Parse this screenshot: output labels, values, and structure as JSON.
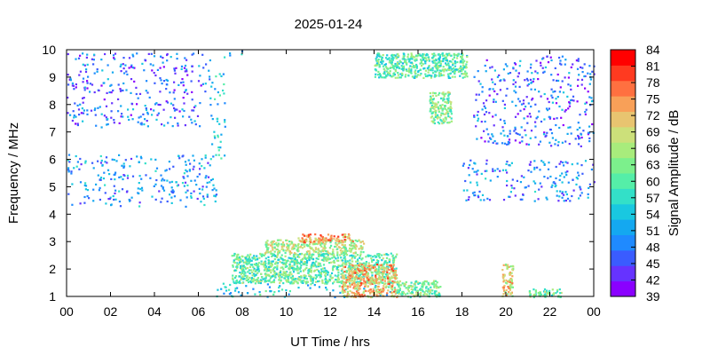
{
  "chart_data": {
    "type": "heatmap",
    "title": "2025-01-24",
    "xlabel": "UT Time / hrs",
    "ylabel": "Frequency / MHz",
    "colorbar_label": "Signal Amplitude / dB",
    "xlim": [
      0,
      24
    ],
    "ylim": [
      1,
      10
    ],
    "x_ticks": [
      "00",
      "02",
      "04",
      "06",
      "08",
      "10",
      "12",
      "14",
      "16",
      "18",
      "20",
      "22",
      "00"
    ],
    "y_ticks": [
      "1",
      "2",
      "3",
      "4",
      "5",
      "6",
      "7",
      "8",
      "9",
      "10"
    ],
    "colorbar_ticks": [
      "39",
      "42",
      "45",
      "48",
      "51",
      "54",
      "57",
      "60",
      "63",
      "66",
      "69",
      "72",
      "75",
      "78",
      "81",
      "84"
    ],
    "colorbar_range": [
      39,
      84
    ],
    "colorbar_colors": [
      "#8a00ff",
      "#6633ff",
      "#3a5cff",
      "#1f8aff",
      "#14a8f0",
      "#19c8e0",
      "#33e0c8",
      "#55eea8",
      "#7cf08c",
      "#a8ec7c",
      "#cce07a",
      "#e8c470",
      "#f8a058",
      "#ff7040",
      "#ff3a20",
      "#ff0000"
    ],
    "grid": false,
    "regions": [
      {
        "t_start": 0.0,
        "t_end": 6.8,
        "f_start": 4.3,
        "f_end": 6.2,
        "level": 50
      },
      {
        "t_start": 0.0,
        "t_end": 6.2,
        "f_start": 7.2,
        "f_end": 8.3,
        "level": 48
      },
      {
        "t_start": 0.0,
        "t_end": 6.5,
        "f_start": 8.4,
        "f_end": 9.9,
        "level": 47
      },
      {
        "t_start": 6.8,
        "t_end": 8.0,
        "f_start": 9.75,
        "f_end": 10.0,
        "level": 52
      },
      {
        "t_start": 6.5,
        "t_end": 7.2,
        "f_start": 6.0,
        "f_end": 9.2,
        "level": 55
      },
      {
        "t_start": 18.0,
        "t_end": 24.0,
        "f_start": 4.5,
        "f_end": 6.0,
        "level": 49
      },
      {
        "t_start": 18.5,
        "t_end": 24.0,
        "f_start": 6.5,
        "f_end": 9.8,
        "level": 47
      },
      {
        "t_start": 14.0,
        "t_end": 18.2,
        "f_start": 9.0,
        "f_end": 9.9,
        "level": 60
      },
      {
        "t_start": 16.5,
        "t_end": 17.5,
        "f_start": 7.3,
        "f_end": 8.5,
        "level": 63
      },
      {
        "t_start": 6.8,
        "t_end": 15.2,
        "f_start": 1.0,
        "f_end": 1.5,
        "level": 55
      },
      {
        "t_start": 7.5,
        "t_end": 15.0,
        "f_start": 1.5,
        "f_end": 2.6,
        "level": 61
      },
      {
        "t_start": 9.0,
        "t_end": 13.5,
        "f_start": 2.6,
        "f_end": 3.1,
        "level": 66
      },
      {
        "t_start": 10.5,
        "t_end": 13.0,
        "f_start": 3.0,
        "f_end": 3.3,
        "level": 74
      },
      {
        "t_start": 12.5,
        "t_end": 15.0,
        "f_start": 1.0,
        "f_end": 2.2,
        "level": 72
      },
      {
        "t_start": 15.0,
        "t_end": 17.0,
        "f_start": 1.0,
        "f_end": 1.6,
        "level": 63
      },
      {
        "t_start": 19.8,
        "t_end": 20.3,
        "f_start": 1.0,
        "f_end": 2.2,
        "level": 70
      },
      {
        "t_start": 21.0,
        "t_end": 22.5,
        "f_start": 1.0,
        "f_end": 1.3,
        "level": 62
      }
    ]
  }
}
